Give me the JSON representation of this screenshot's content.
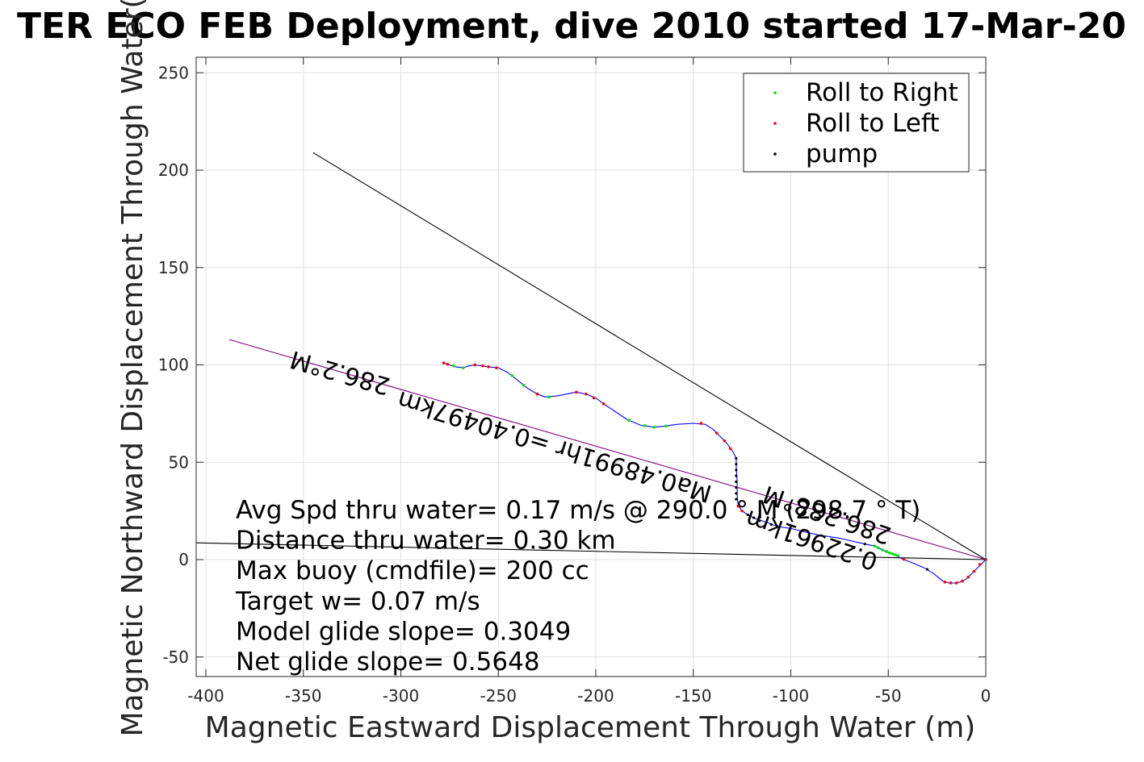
{
  "chart_data": {
    "type": "line",
    "title": "TER ECO FEB Deployment, dive 2010 started 17-Mar-20",
    "xlabel": "Magnetic Eastward Displacement Through Water (m)",
    "ylabel": "Magnetic Northward Displacement Through Water(",
    "xlim": [
      -405,
      0
    ],
    "ylim": [
      -60,
      260
    ],
    "xticks": [
      -400,
      -350,
      -300,
      -250,
      -200,
      -150,
      -100,
      -50,
      0
    ],
    "xtick_labels": [
      "-400",
      "-350",
      "-300",
      "-250",
      "-200",
      "-150",
      "-100",
      "-50",
      "0"
    ],
    "yticks": [
      -50,
      0,
      50,
      100,
      150,
      200,
      250
    ],
    "ytick_labels": [
      "-50",
      "0",
      "50",
      "100",
      "150",
      "200",
      "250"
    ],
    "grid": true,
    "legend_position": "top-right",
    "legend": [
      {
        "label": "Roll to Right",
        "color": "#00e600"
      },
      {
        "label": "Roll to Left",
        "color": "#ff0000"
      },
      {
        "label": "pump",
        "color": "#000000"
      }
    ],
    "track": {
      "color": "#0000ff",
      "points": [
        [
          0,
          0
        ],
        [
          -2,
          -2
        ],
        [
          -5,
          -5
        ],
        [
          -8,
          -8
        ],
        [
          -10,
          -10
        ],
        [
          -13,
          -11.5
        ],
        [
          -16,
          -12
        ],
        [
          -19,
          -12
        ],
        [
          -22,
          -11
        ],
        [
          -27,
          -7
        ],
        [
          -32,
          -4
        ],
        [
          -38,
          -1.5
        ],
        [
          -42,
          0
        ],
        [
          -45,
          1.5
        ],
        [
          -48,
          3
        ],
        [
          -51,
          4
        ],
        [
          -54,
          5.5
        ],
        [
          -57,
          7
        ],
        [
          -62,
          8
        ],
        [
          -75,
          11
        ],
        [
          -85,
          12.5
        ],
        [
          -92,
          14
        ],
        [
          -100,
          16
        ],
        [
          -107,
          17
        ],
        [
          -112,
          19
        ],
        [
          -118,
          21
        ],
        [
          -122,
          23
        ],
        [
          -125,
          25
        ],
        [
          -127,
          28
        ],
        [
          -127.5,
          33
        ],
        [
          -127.5,
          40
        ],
        [
          -128,
          48
        ],
        [
          -128,
          52
        ],
        [
          -130,
          56
        ],
        [
          -133,
          60
        ],
        [
          -137,
          64
        ],
        [
          -140,
          67
        ],
        [
          -144,
          69.5
        ],
        [
          -150,
          70
        ],
        [
          -158,
          69.5
        ],
        [
          -165,
          68.5
        ],
        [
          -170,
          68
        ],
        [
          -177,
          69
        ],
        [
          -184,
          72
        ],
        [
          -190,
          76
        ],
        [
          -196,
          80
        ],
        [
          -200,
          83
        ],
        [
          -205,
          85
        ],
        [
          -210,
          86
        ],
        [
          -215,
          85
        ],
        [
          -220,
          84
        ],
        [
          -226,
          83.5
        ],
        [
          -230,
          85
        ],
        [
          -235,
          88
        ],
        [
          -240,
          92
        ],
        [
          -245,
          96
        ],
        [
          -250,
          98.5
        ],
        [
          -255,
          99
        ],
        [
          -262,
          100
        ],
        [
          -265,
          99.5
        ],
        [
          -268,
          98.5
        ],
        [
          -272,
          99
        ],
        [
          -275,
          100
        ],
        [
          -278,
          101
        ]
      ]
    },
    "right_roll_points": [
      [
        -45,
        2
      ],
      [
        -46.5,
        2.5
      ],
      [
        -48,
        3
      ],
      [
        -49.5,
        3.5
      ],
      [
        -51,
        4.2
      ],
      [
        -53,
        5
      ],
      [
        -55,
        6
      ],
      [
        -57,
        7
      ],
      [
        -164,
        68.6
      ],
      [
        -170,
        68
      ],
      [
        -175,
        68.8
      ],
      [
        -183,
        71.5
      ],
      [
        -224,
        83.5
      ],
      [
        -230,
        85
      ],
      [
        -237,
        89.5
      ],
      [
        -243,
        94.5
      ],
      [
        -268,
        98.5
      ],
      [
        -273,
        99.5
      ]
    ],
    "left_roll_points": [
      [
        0,
        0
      ],
      [
        -3,
        -2.5
      ],
      [
        -6,
        -6
      ],
      [
        -9,
        -9
      ],
      [
        -12,
        -11
      ],
      [
        -15,
        -12
      ],
      [
        -18,
        -12
      ],
      [
        -21,
        -11.5
      ],
      [
        -42,
        0.2
      ],
      [
        -125,
        25
      ],
      [
        -127,
        27.5
      ],
      [
        -131,
        57
      ],
      [
        -134,
        61
      ],
      [
        -138,
        65
      ],
      [
        -146,
        70
      ],
      [
        -196,
        80
      ],
      [
        -201,
        83
      ],
      [
        -205,
        85
      ],
      [
        -210,
        86
      ],
      [
        -230,
        85
      ],
      [
        -251,
        98.5
      ],
      [
        -255,
        99
      ],
      [
        -258,
        99.5
      ],
      [
        -262,
        100
      ],
      [
        -276,
        100.3
      ],
      [
        -278,
        101
      ]
    ],
    "pump_points": [
      [
        -128,
        31
      ],
      [
        -128,
        34
      ],
      [
        -128,
        37
      ],
      [
        -128,
        40
      ],
      [
        -128,
        43
      ],
      [
        -128,
        46
      ],
      [
        -128,
        49
      ],
      [
        -128,
        52
      ],
      [
        -110,
        18
      ],
      [
        -116,
        20
      ],
      [
        -30,
        -5
      ],
      [
        -62,
        8
      ],
      [
        -107,
        17
      ],
      [
        -119,
        21.5
      ],
      [
        -122,
        23
      ]
    ],
    "reference_lines": [
      {
        "color": "#000000",
        "points": [
          [
            0,
            0
          ],
          [
            -345,
            209
          ]
        ]
      },
      {
        "color": "#000000",
        "points": [
          [
            0,
            0
          ],
          [
            -405,
            8.6
          ]
        ]
      },
      {
        "color": "#800080",
        "points": [
          [
            0,
            0
          ],
          [
            -388,
            113
          ]
        ]
      }
    ],
    "annotations": [
      {
        "text": "286.2°M",
        "x": -330,
        "y": 100,
        "rotation_deg": 196
      },
      {
        "text": "Ma0.48991hr =0.40497km",
        "x": -220,
        "y": 62,
        "rotation_deg": 197
      },
      {
        "text": "286.288°M",
        "x": -80,
        "y": 27,
        "rotation_deg": 199
      },
      {
        "text": "0.22961km",
        "x": -88,
        "y": 14,
        "rotation_deg": 199
      }
    ],
    "stats": [
      "Avg Spd thru water=  0.17 m/s @ 290.0 ° M (298.7 ° T)",
      "Distance thru water=  0.30 km",
      "Max buoy (cmdfile)= 200 cc",
      "Target w= 0.07 m/s",
      "Model glide slope= 0.3049",
      "Net glide slope= 0.5648"
    ]
  }
}
